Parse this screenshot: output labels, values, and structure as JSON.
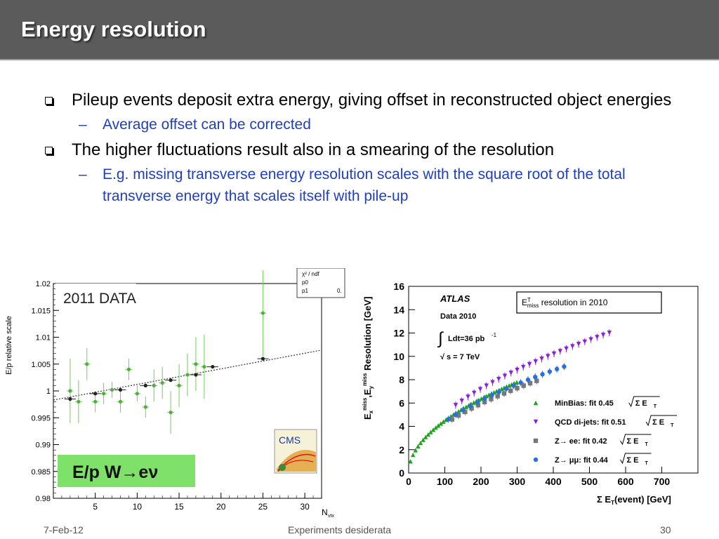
{
  "slide": {
    "title": "Energy resolution",
    "bullets": [
      {
        "text": "Pileup events deposit extra energy, giving offset in reconstructed object energies",
        "sub": [
          "Average offset can be corrected"
        ]
      },
      {
        "text": "The higher fluctuations result also in a smearing of the resolution",
        "sub": [
          "E.g. missing transverse energy resolution scales with the square root of the total transverse energy that scales itself with pile-up"
        ]
      }
    ],
    "footer": {
      "date": "7-Feb-12",
      "center": "Experiments desiderata",
      "page": "30"
    }
  },
  "chart_data": [
    {
      "type": "scatter",
      "title": "2011 DATA",
      "badge": "E/p  W→eν",
      "logo": "CMS",
      "ylabel": "E/p relative scale",
      "xlabel": "N",
      "xlabel_sub": "vtx",
      "xlim": [
        0,
        32
      ],
      "ylim": [
        0.98,
        1.02
      ],
      "xticks": [
        "5",
        "10",
        "15",
        "20",
        "25",
        "30"
      ],
      "yticks": [
        "0.98",
        "0.985",
        "0.99",
        "0.995",
        "1",
        "1.005",
        "1.01",
        "1.015",
        "1.02"
      ],
      "legend_box": [
        "χ² / ndf",
        "p0",
        "p1",
        "0."
      ],
      "fit": {
        "x0": 0,
        "y0": 0.9983,
        "x1": 32,
        "y1": 1.0076
      },
      "series": [
        {
          "points": [
            {
              "x": 2,
              "y": 1.0,
              "e": 0.006
            },
            {
              "x": 3,
              "y": 0.998,
              "e": 0.004
            },
            {
              "x": 4,
              "y": 1.005,
              "e": 0.003
            },
            {
              "x": 5,
              "y": 0.998,
              "e": 0.002
            },
            {
              "x": 6,
              "y": 0.9995,
              "e": 0.002
            },
            {
              "x": 7,
              "y": 1.0002,
              "e": 0.0015
            },
            {
              "x": 8,
              "y": 0.998,
              "e": 0.002
            },
            {
              "x": 9,
              "y": 1.004,
              "e": 0.002
            },
            {
              "x": 10,
              "y": 0.9995,
              "e": 0.0015
            },
            {
              "x": 11,
              "y": 0.997,
              "e": 0.002
            },
            {
              "x": 12,
              "y": 1.001,
              "e": 0.003
            },
            {
              "x": 13,
              "y": 1.0015,
              "e": 0.003
            },
            {
              "x": 14,
              "y": 0.996,
              "e": 0.004
            },
            {
              "x": 15,
              "y": 1.001,
              "e": 0.004
            },
            {
              "x": 16,
              "y": 1.003,
              "e": 0.004
            },
            {
              "x": 17,
              "y": 1.005,
              "e": 0.005
            },
            {
              "x": 18,
              "y": 1.0045,
              "e": 0.006
            },
            {
              "x": 25,
              "y": 1.0145,
              "e": 0.008
            }
          ]
        },
        {
          "points": [
            {
              "x": 2,
              "y": 0.9985
            },
            {
              "x": 5,
              "y": 0.9995
            },
            {
              "x": 8,
              "y": 1.0002
            },
            {
              "x": 11,
              "y": 1.001
            },
            {
              "x": 14,
              "y": 1.002
            },
            {
              "x": 17,
              "y": 1.003
            },
            {
              "x": 19,
              "y": 1.0045
            },
            {
              "x": 25,
              "y": 1.006
            }
          ]
        }
      ]
    },
    {
      "type": "scatter",
      "experiment": "ATLAS",
      "data_label": "Data 2010",
      "lumi": "Ldt=36 pb",
      "lumi_sup": "-1",
      "energy": "s = 7 TeV",
      "box_title": [
        "E",
        "T",
        "miss",
        " resolution in 2010"
      ],
      "ylabel": [
        "E",
        "x",
        "miss",
        ",E",
        "y",
        "miss",
        " Resolution [GeV]"
      ],
      "xlabel": [
        "Σ E",
        "T",
        "(event)  [GeV]"
      ],
      "xlim": [
        0,
        800
      ],
      "ylim": [
        0,
        16
      ],
      "xticks": [
        "0",
        "100",
        "200",
        "300",
        "400",
        "500",
        "600",
        "700"
      ],
      "yticks": [
        "0",
        "2",
        "4",
        "6",
        "8",
        "10",
        "12",
        "14",
        "16"
      ],
      "series": [
        {
          "name": "MinBias: fit 0.45",
          "fit": 0.45,
          "color": "#1fa31f",
          "marker": "triangle-up",
          "xrange": [
            5,
            305
          ],
          "step": 7
        },
        {
          "name": "QCD di-jets: fit 0.51",
          "fit": 0.51,
          "color": "#8a1fd8",
          "marker": "triangle-down",
          "xrange": [
            130,
            560
          ],
          "step": 17
        },
        {
          "name": "Z→ ee: fit 0.42",
          "fit": 0.42,
          "color": "#777777",
          "marker": "square",
          "xrange": [
            120,
            370
          ],
          "step": 18
        },
        {
          "name": "Z→ μμ: fit 0.44",
          "fit": 0.44,
          "color": "#2a6fe0",
          "marker": "circle",
          "xrange": [
            110,
            440
          ],
          "step": 20
        }
      ],
      "legend_suffix": [
        "Σ E",
        "T"
      ]
    }
  ]
}
